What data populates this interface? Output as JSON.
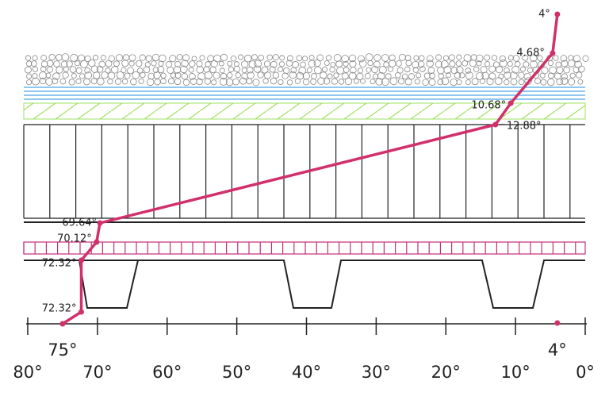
{
  "chart_data": {
    "type": "line",
    "series": [
      {
        "color": "#d1306a",
        "values": [
          4,
          4.68,
          10.68,
          12.88,
          69.64,
          70.12,
          72.32,
          72.32,
          75
        ],
        "value_labels": [
          "4°",
          "4.68°",
          "10.68°",
          "12.88°",
          "69.64°",
          "70.12°",
          "72.32°",
          "72.32°",
          "75°"
        ]
      }
    ],
    "markers": [
      {
        "value": 4,
        "label": "4°"
      }
    ],
    "xlim": [
      80,
      0
    ],
    "xticks": [
      {
        "value": 80,
        "label": "80°"
      },
      {
        "value": 70,
        "label": "70°"
      },
      {
        "value": 60,
        "label": "60°"
      },
      {
        "value": 50,
        "label": "50°"
      },
      {
        "value": 40,
        "label": "40°"
      },
      {
        "value": 30,
        "label": "30°"
      },
      {
        "value": 20,
        "label": "20°"
      },
      {
        "value": 10,
        "label": "10°"
      },
      {
        "value": 0,
        "label": "0°"
      }
    ]
  }
}
